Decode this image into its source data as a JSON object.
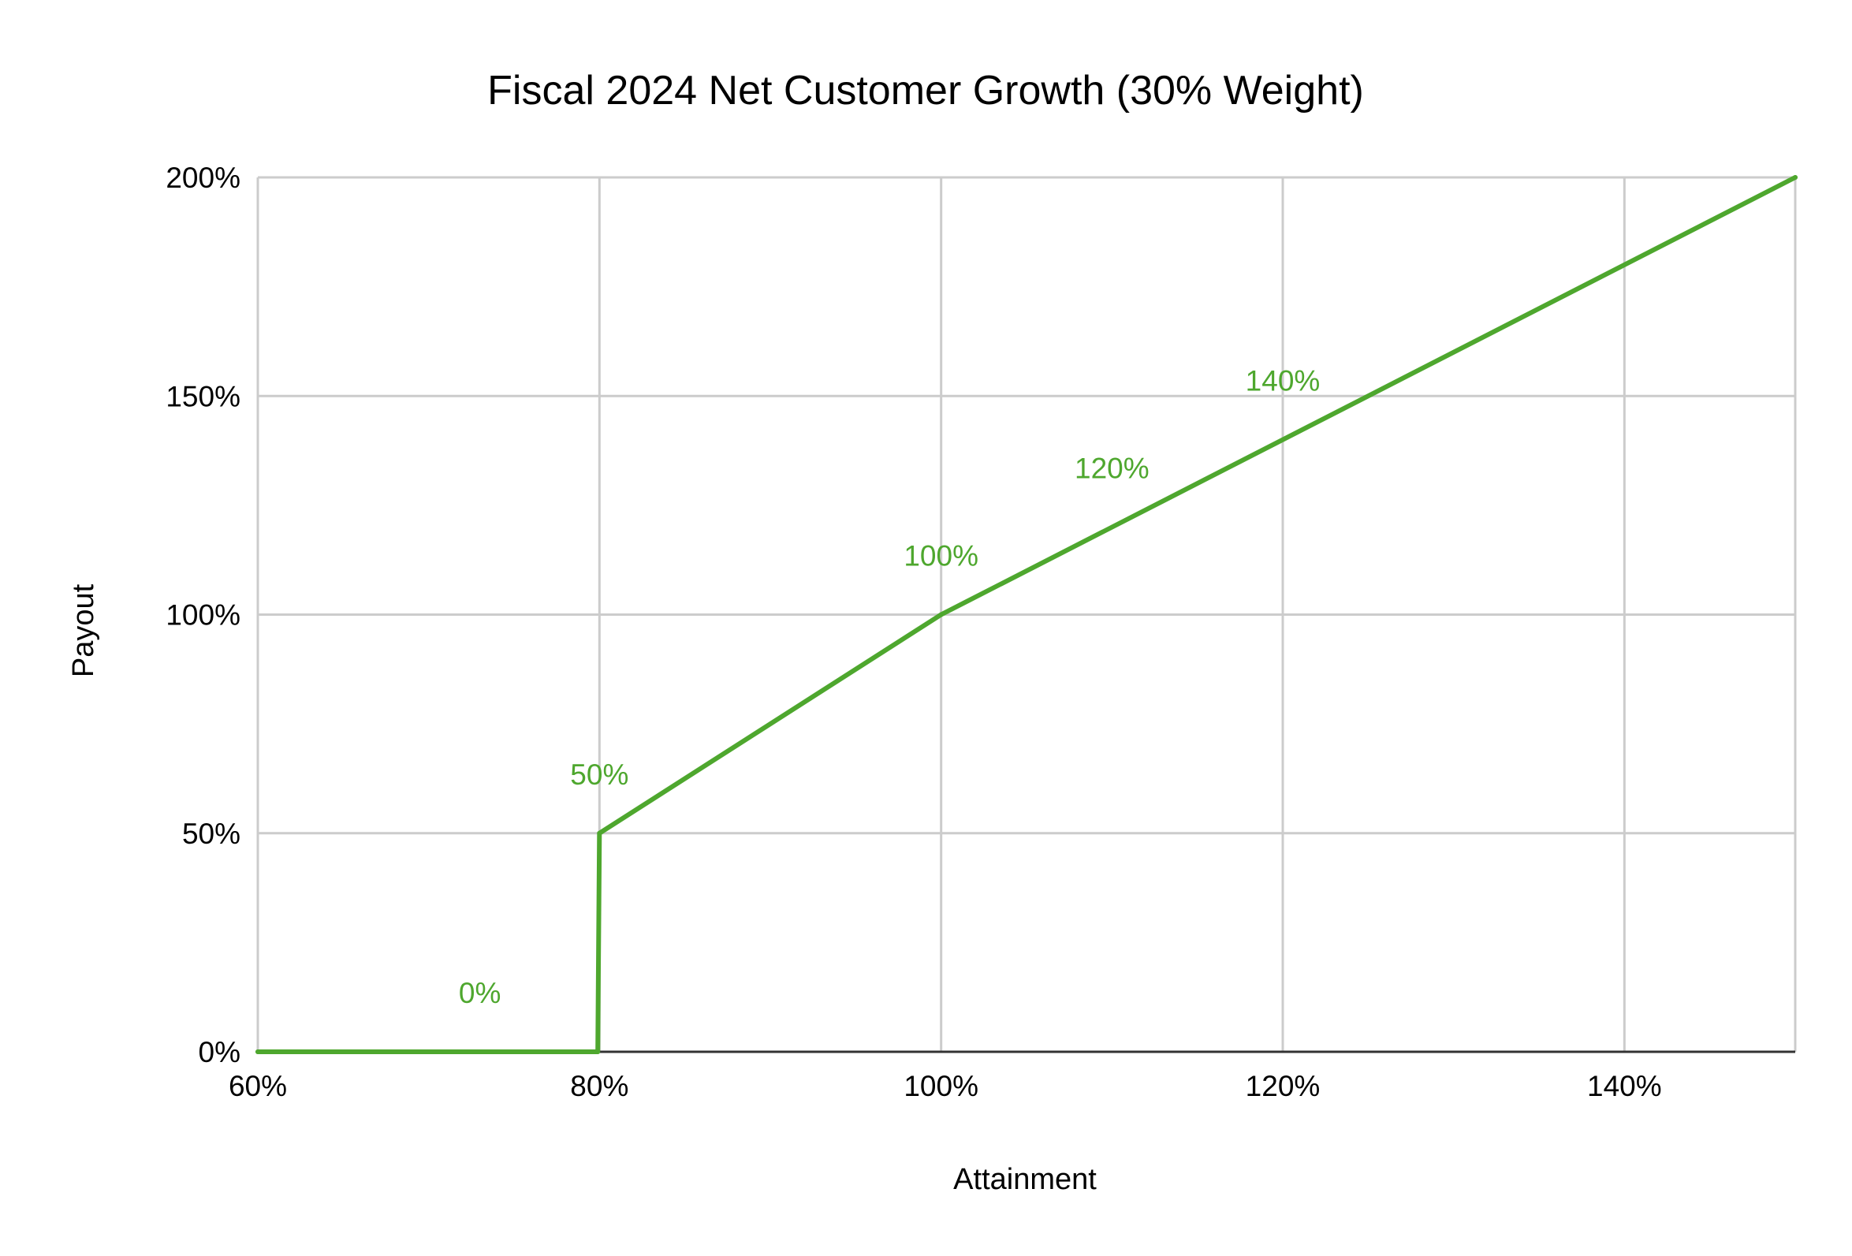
{
  "chart_data": {
    "type": "line",
    "title": "Fiscal 2024 Net Customer Growth (30% Weight)",
    "xlabel": "Attainment",
    "ylabel": "Payout",
    "xlim": [
      60,
      150
    ],
    "ylim": [
      0,
      200
    ],
    "x_ticks": [
      60,
      80,
      100,
      120,
      140
    ],
    "x_tick_labels": [
      "60%",
      "80%",
      "100%",
      "120%",
      "140%"
    ],
    "y_ticks": [
      0,
      50,
      100,
      150,
      200
    ],
    "y_tick_labels": [
      "0%",
      "50%",
      "100%",
      "150%",
      "200%"
    ],
    "grid": true,
    "legend": "none",
    "series": [
      {
        "color": "#4ea72e",
        "points": [
          {
            "x": 60,
            "y": 0
          },
          {
            "x": 79.9,
            "y": 0
          },
          {
            "x": 80,
            "y": 50
          },
          {
            "x": 100,
            "y": 100
          },
          {
            "x": 150,
            "y": 200
          }
        ]
      }
    ],
    "data_labels": [
      {
        "x": 73,
        "y": 0,
        "text": "0%"
      },
      {
        "x": 80,
        "y": 50,
        "text": "50%"
      },
      {
        "x": 100,
        "y": 100,
        "text": "100%"
      },
      {
        "x": 110,
        "y": 120,
        "text": "120%"
      },
      {
        "x": 120,
        "y": 140,
        "text": "140%"
      }
    ],
    "colors": {
      "line": "#4ea72e",
      "data_label": "#4ea72e",
      "grid": "#cccccc",
      "baseline": "#333333",
      "text": "#000000"
    }
  }
}
